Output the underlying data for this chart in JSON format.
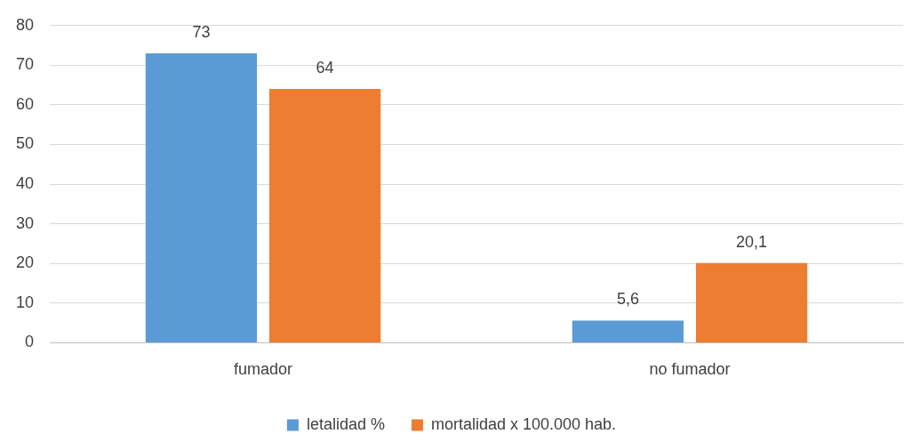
{
  "chart_data": {
    "type": "bar",
    "categories": [
      "fumador",
      "no fumador"
    ],
    "series": [
      {
        "name": "letalidad %",
        "color": "#5b9bd5",
        "values": [
          73,
          5.6
        ],
        "value_labels": [
          "73",
          "5,6"
        ]
      },
      {
        "name": "mortalidad x 100.000 hab.",
        "color": "#ed7d31",
        "values": [
          64,
          20.1
        ],
        "value_labels": [
          "64",
          "20,1"
        ]
      }
    ],
    "ylim": [
      0,
      80
    ],
    "yticks": [
      0,
      10,
      20,
      30,
      40,
      50,
      60,
      70,
      80
    ],
    "grid": "y",
    "legend": "bottom"
  }
}
